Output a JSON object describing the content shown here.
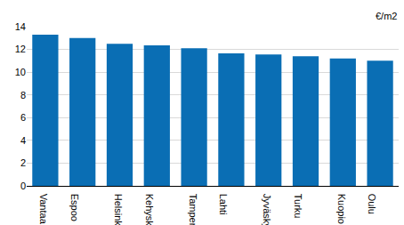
{
  "chart_data": {
    "type": "bar",
    "ylabel": "€/m2",
    "categories": [
      "Vantaa",
      "Espoo",
      "Helsinki",
      "Kehyskunnat",
      "Tampere",
      "Lahti",
      "Jyväskylä",
      "Turku",
      "Kuopio",
      "Oulu"
    ],
    "values": [
      13.3,
      13.0,
      12.5,
      12.35,
      12.1,
      11.65,
      11.55,
      11.4,
      11.2,
      11.0
    ],
    "color": "#0a6eb4",
    "ylim": [
      0,
      14
    ],
    "yticks": [
      0,
      2,
      4,
      6,
      8,
      10,
      12,
      14
    ],
    "grid": true
  }
}
